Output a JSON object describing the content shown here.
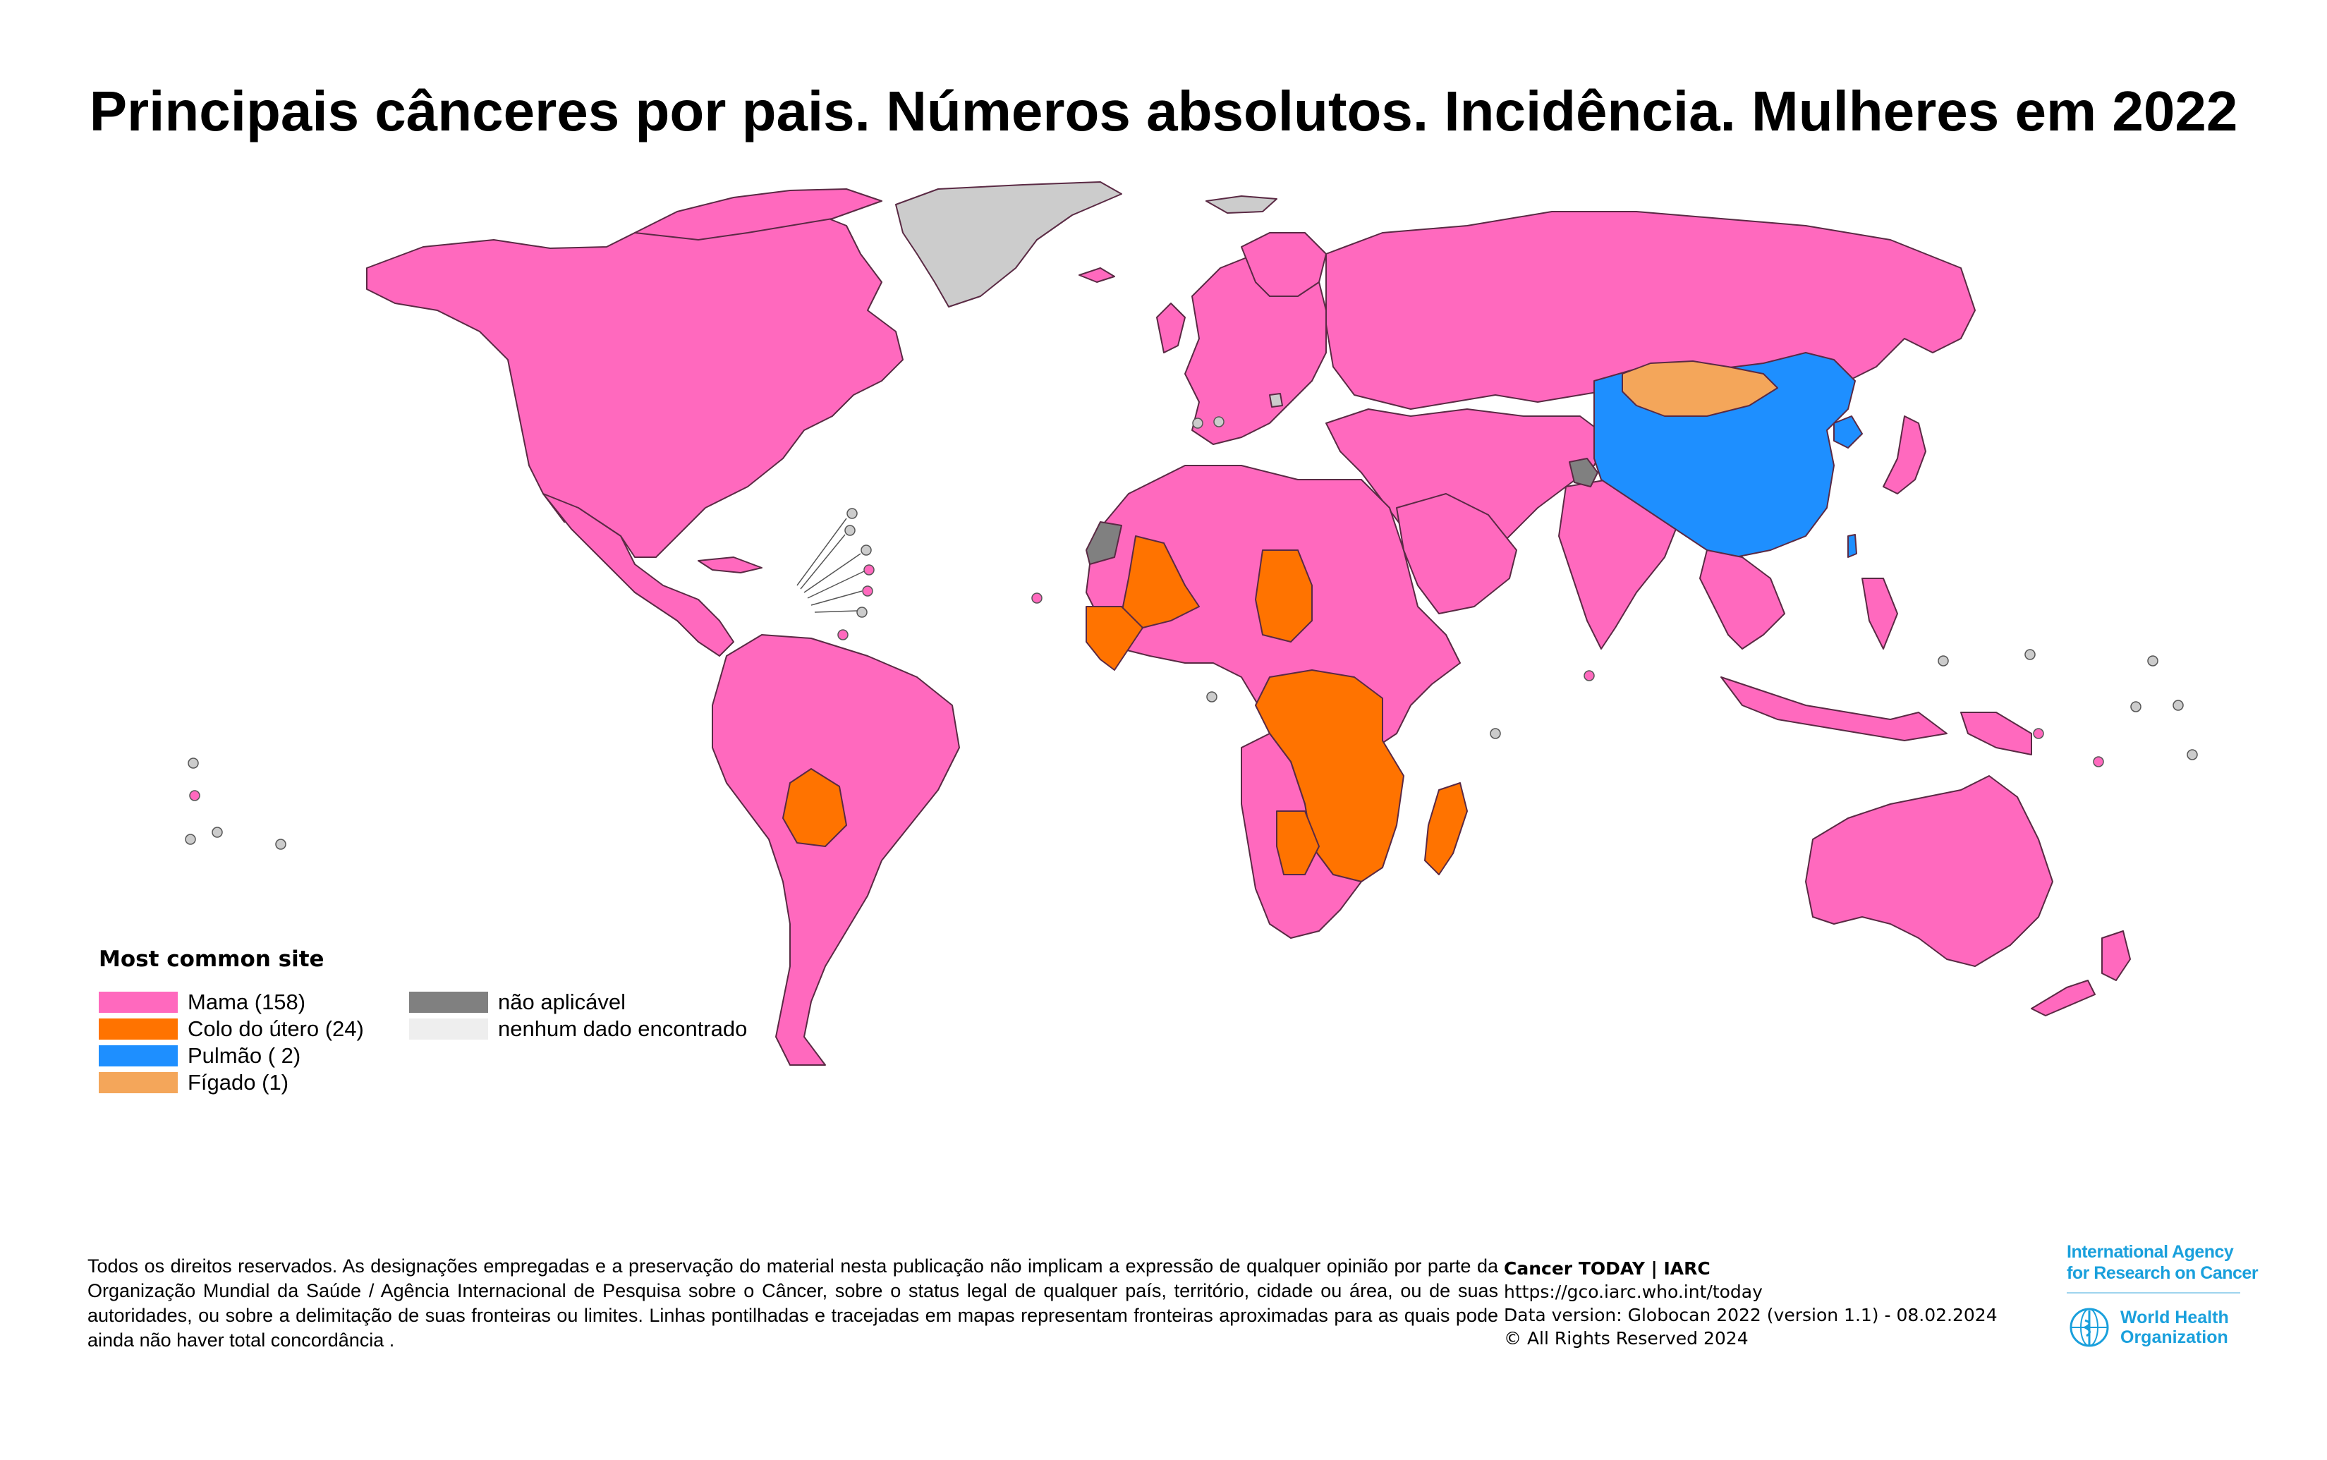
{
  "title": "Principais cânceres por pais. Números absolutos. Incidência. Mulheres em 2022",
  "colors": {
    "mama": "#ff69be",
    "colo_do_utero": "#ff7300",
    "pulmao": "#1e8fff",
    "figado": "#f4a65a",
    "nao_aplicavel": "#808080",
    "nenhum_dado": "#cccccc",
    "border": "#5a2a44"
  },
  "legend": {
    "title": "Most common site",
    "items": [
      {
        "label": "Mama (158)",
        "color": "#ff69be"
      },
      {
        "label": "Colo do útero (24)",
        "color": "#ff7300"
      },
      {
        "label": "Pulmão ( 2)",
        "color": "#1e8fff"
      },
      {
        "label": "Fígado (1)",
        "color": "#f4a65a"
      }
    ],
    "other": [
      {
        "label": "não aplicável",
        "color": "#808080"
      },
      {
        "label": "nenhum dado encontrado",
        "color": "#eeeeee"
      }
    ]
  },
  "disclaimer": "Todos os direitos reservados. As designações empregadas e a preservação do material nesta publicação não implicam a expressão de qualquer opinião por parte da Organização Mundial da Saúde / Agência Internacional de Pesquisa sobre o Câncer, sobre o status legal de qualquer país, território, cidade ou área, ou de suas autoridades, ou sobre a delimitação de suas fronteiras ou limites. Linhas pontilhadas e tracejadas em mapas representam fronteiras aproximadas para as quais pode ainda não haver total concordância .",
  "source": {
    "title": "Cancer TODAY | IARC",
    "url": "https://gco.iarc.who.int/today",
    "version": "Data version: Globocan 2022 (version 1.1) - 08.02.2024",
    "rights": "© All Rights Reserved 2024"
  },
  "logos": {
    "iarc_line1": "International Agency",
    "iarc_line2": "for Research on Cancer",
    "who_line1": "World Health",
    "who_line2": "Organization"
  }
}
